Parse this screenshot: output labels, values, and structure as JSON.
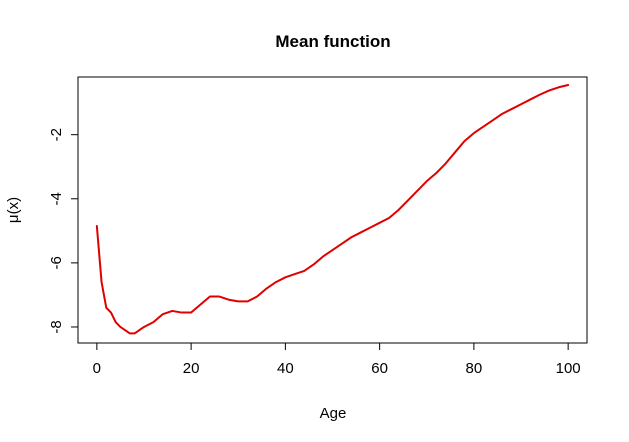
{
  "chart_data": {
    "type": "line",
    "title": "Mean function",
    "xlabel": "Age",
    "ylabel": "μ(x)",
    "xlim": [
      -4,
      104
    ],
    "ylim": [
      -8.5,
      -0.2
    ],
    "xticks": [
      0,
      20,
      40,
      60,
      80,
      100
    ],
    "yticks": [
      -8,
      -6,
      -4,
      -2
    ],
    "grid": false,
    "series": [
      {
        "color": "#e00000",
        "x": [
          0,
          1,
          2,
          3,
          4,
          5,
          6,
          7,
          8,
          9,
          10,
          12,
          14,
          16,
          18,
          20,
          22,
          24,
          26,
          28,
          30,
          32,
          34,
          36,
          38,
          40,
          42,
          44,
          46,
          48,
          50,
          52,
          54,
          56,
          58,
          60,
          62,
          64,
          66,
          68,
          70,
          72,
          74,
          76,
          78,
          80,
          82,
          84,
          86,
          88,
          90,
          92,
          94,
          96,
          98,
          100
        ],
        "y": [
          -4.85,
          -6.6,
          -7.4,
          -7.55,
          -7.85,
          -8.0,
          -8.1,
          -8.2,
          -8.2,
          -8.1,
          -8.0,
          -7.85,
          -7.6,
          -7.5,
          -7.55,
          -7.55,
          -7.3,
          -7.05,
          -7.05,
          -7.15,
          -7.2,
          -7.2,
          -7.05,
          -6.8,
          -6.6,
          -6.45,
          -6.35,
          -6.25,
          -6.05,
          -5.8,
          -5.6,
          -5.4,
          -5.2,
          -5.05,
          -4.9,
          -4.75,
          -4.6,
          -4.35,
          -4.05,
          -3.75,
          -3.45,
          -3.2,
          -2.9,
          -2.55,
          -2.2,
          -1.95,
          -1.75,
          -1.55,
          -1.35,
          -1.2,
          -1.05,
          -0.9,
          -0.75,
          -0.62,
          -0.52,
          -0.45
        ]
      }
    ]
  }
}
